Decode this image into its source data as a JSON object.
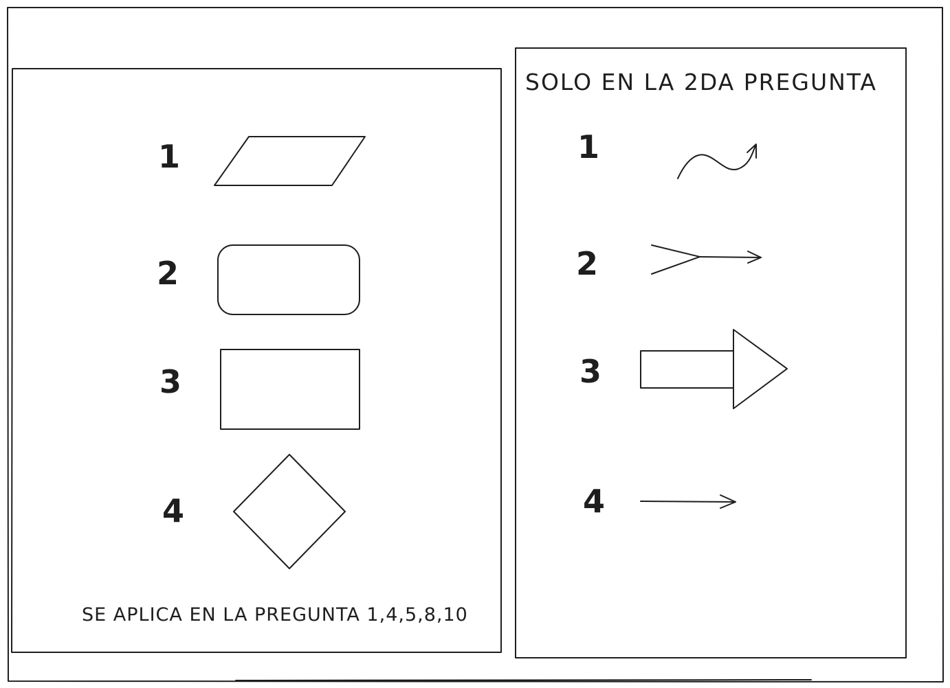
{
  "left_panel": {
    "items": [
      {
        "number": "1",
        "shape": "parallelogram"
      },
      {
        "number": "2",
        "shape": "rounded-rectangle"
      },
      {
        "number": "3",
        "shape": "rectangle"
      },
      {
        "number": "4",
        "shape": "diamond"
      }
    ],
    "caption": "SE APLICA EN LA PREGUNTA 1,4,5,8,10"
  },
  "right_panel": {
    "title": "SOLO EN LA 2DA PREGUNTA",
    "items": [
      {
        "number": "1",
        "shape": "curved-arrow"
      },
      {
        "number": "2",
        "shape": "feathered-arrow"
      },
      {
        "number": "3",
        "shape": "block-arrow"
      },
      {
        "number": "4",
        "shape": "straight-arrow"
      }
    ]
  },
  "colors": {
    "stroke": "#1e1e1e",
    "background": "#ffffff"
  }
}
